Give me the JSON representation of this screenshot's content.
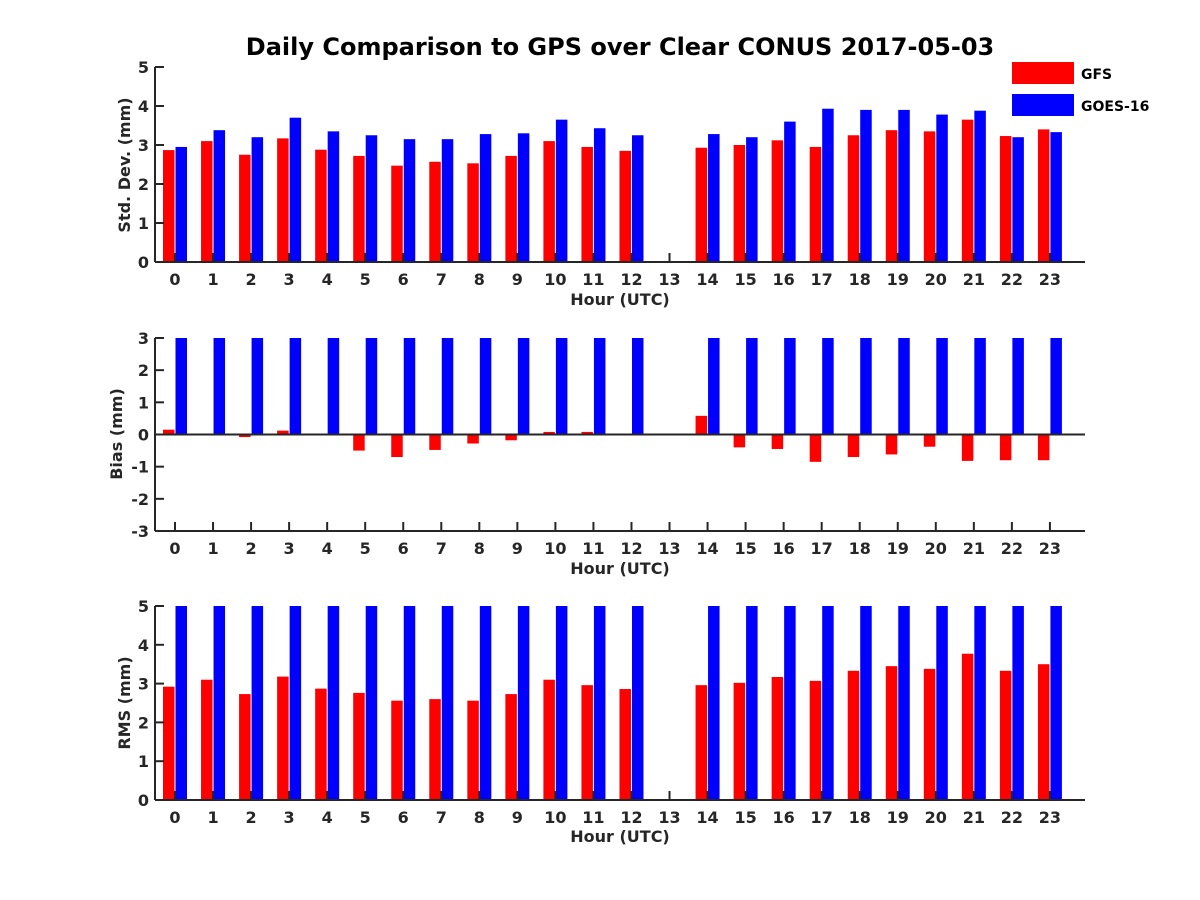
{
  "figure_title": "Daily Comparison to GPS over Clear CONUS 2017-05-03",
  "legend": [
    {
      "name": "GFS",
      "color": "#ff0000"
    },
    {
      "name": "GOES-16",
      "color": "#0000ff"
    }
  ],
  "chart_data": [
    {
      "type": "bar",
      "title": "Daily Comparison to GPS over Clear CONUS 2017-05-03",
      "xlabel": "Hour (UTC)",
      "ylabel": "Std. Dev. (mm)",
      "ylim": [
        0,
        5
      ],
      "yticks": [
        "0",
        "1",
        "2",
        "3",
        "4",
        "5"
      ],
      "categories": [
        "0",
        "1",
        "2",
        "3",
        "4",
        "5",
        "6",
        "7",
        "8",
        "9",
        "10",
        "11",
        "12",
        "13",
        "14",
        "15",
        "16",
        "17",
        "18",
        "19",
        "20",
        "21",
        "22",
        "23"
      ],
      "series": [
        {
          "name": "GFS",
          "color": "#ff0000",
          "values": [
            2.87,
            3.1,
            2.75,
            3.17,
            2.88,
            2.72,
            2.47,
            2.57,
            2.53,
            2.72,
            3.1,
            2.95,
            2.85,
            null,
            2.93,
            3.0,
            3.12,
            2.95,
            3.25,
            3.38,
            3.35,
            3.65,
            3.23,
            3.4
          ]
        },
        {
          "name": "GOES-16",
          "color": "#0000ff",
          "values": [
            2.95,
            3.38,
            3.2,
            3.7,
            3.35,
            3.25,
            3.15,
            3.15,
            3.28,
            3.3,
            3.65,
            3.43,
            3.25,
            null,
            3.28,
            3.2,
            3.6,
            3.93,
            3.9,
            3.9,
            3.78,
            3.88,
            3.2,
            3.33
          ]
        }
      ]
    },
    {
      "type": "bar",
      "xlabel": "Hour (UTC)",
      "ylabel": "Bias (mm)",
      "ylim": [
        -3,
        3
      ],
      "yticks": [
        "-3",
        "-2",
        "-1",
        "0",
        "1",
        "2",
        "3"
      ],
      "categories": [
        "0",
        "1",
        "2",
        "3",
        "4",
        "5",
        "6",
        "7",
        "8",
        "9",
        "10",
        "11",
        "12",
        "13",
        "14",
        "15",
        "16",
        "17",
        "18",
        "19",
        "20",
        "21",
        "22",
        "23"
      ],
      "series": [
        {
          "name": "GFS",
          "color": "#ff0000",
          "values": [
            0.15,
            0.0,
            -0.08,
            0.12,
            0.0,
            -0.5,
            -0.7,
            -0.48,
            -0.28,
            -0.18,
            0.08,
            0.08,
            -0.03,
            null,
            0.58,
            -0.4,
            -0.45,
            -0.85,
            -0.7,
            -0.62,
            -0.38,
            -0.82,
            -0.8,
            -0.8
          ]
        },
        {
          "name": "GOES-16",
          "color": "#0000ff",
          "values": [
            3,
            3,
            3,
            3,
            3,
            3,
            3,
            3,
            3,
            3,
            3,
            3,
            3,
            null,
            3,
            3,
            3,
            3,
            3,
            3,
            3,
            3,
            3,
            3
          ]
        }
      ]
    },
    {
      "type": "bar",
      "xlabel": "Hour (UTC)",
      "ylabel": "RMS (mm)",
      "ylim": [
        0,
        5
      ],
      "yticks": [
        "0",
        "1",
        "2",
        "3",
        "4",
        "5"
      ],
      "categories": [
        "0",
        "1",
        "2",
        "3",
        "4",
        "5",
        "6",
        "7",
        "8",
        "9",
        "10",
        "11",
        "12",
        "13",
        "14",
        "15",
        "16",
        "17",
        "18",
        "19",
        "20",
        "21",
        "22",
        "23"
      ],
      "series": [
        {
          "name": "GFS",
          "color": "#ff0000",
          "values": [
            2.92,
            3.1,
            2.73,
            3.18,
            2.87,
            2.76,
            2.56,
            2.6,
            2.56,
            2.73,
            3.1,
            2.96,
            2.86,
            null,
            2.96,
            3.02,
            3.17,
            3.07,
            3.33,
            3.45,
            3.38,
            3.77,
            3.33,
            3.5
          ]
        },
        {
          "name": "GOES-16",
          "color": "#0000ff",
          "values": [
            5,
            5,
            5,
            5,
            5,
            5,
            5,
            5,
            5,
            5,
            5,
            5,
            5,
            null,
            5,
            5,
            5,
            5,
            5,
            5,
            5,
            5,
            5,
            5
          ]
        }
      ]
    }
  ]
}
